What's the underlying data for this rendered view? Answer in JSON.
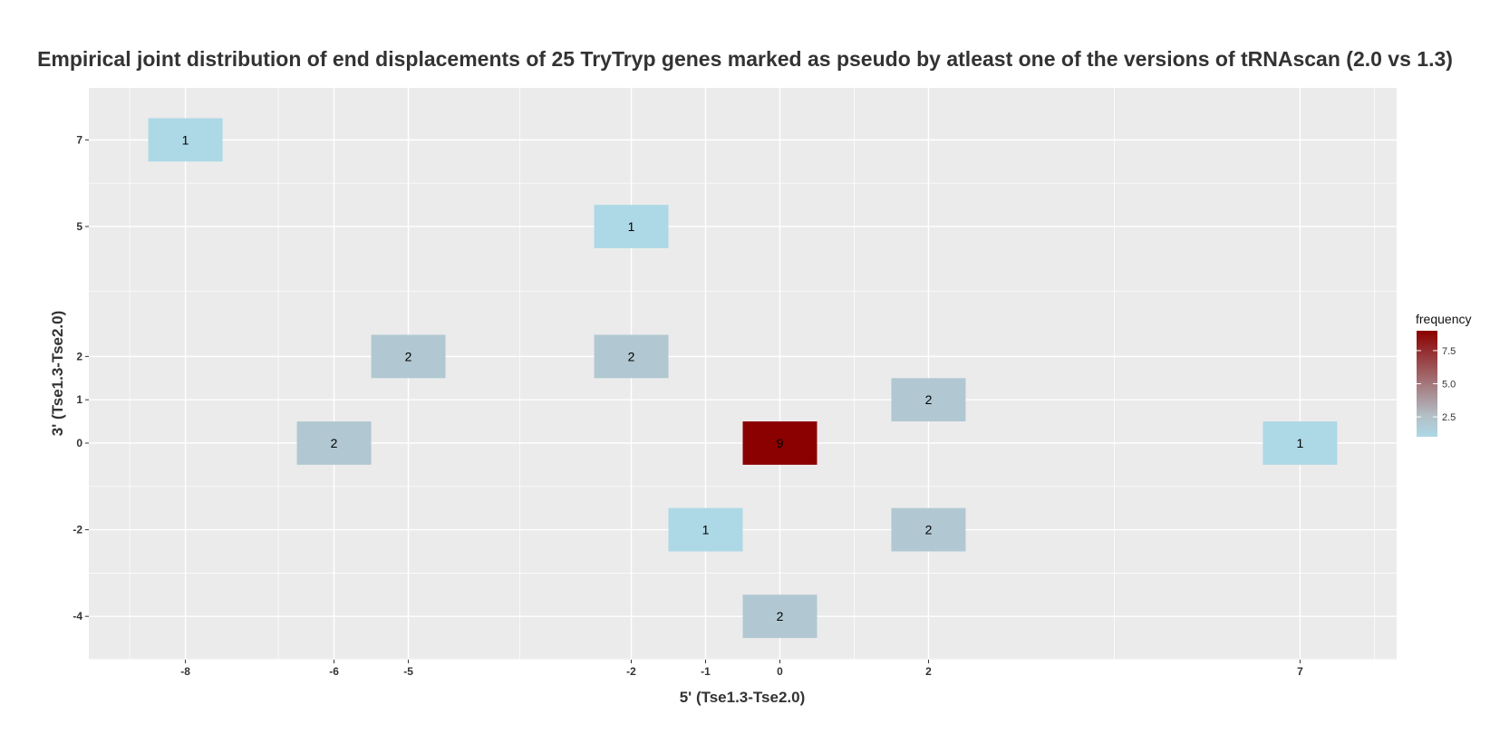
{
  "chart_data": {
    "type": "heatmap",
    "title": "Empirical joint distribution of end displacements of 25 TryTryp genes marked as pseudo by atleast one of the versions of tRNAscan (2.0 vs 1.3)",
    "xlabel": "5' (Tse1.3-Tse2.0)",
    "ylabel": "3' (Tse1.3-Tse2.0)",
    "xlim": [
      -9.3,
      8.3
    ],
    "ylim": [
      -5.0,
      8.2
    ],
    "x_ticks": [
      -8,
      -6,
      -5,
      -2,
      -1,
      0,
      2,
      7
    ],
    "y_ticks": [
      -4,
      -2,
      0,
      1,
      2,
      5,
      7
    ],
    "x_minor_grid": [
      -8.75,
      -6.75,
      -3.5,
      1,
      4.5,
      8
    ],
    "y_minor_grid": [
      -4.98,
      -3,
      -1,
      3.5,
      6
    ],
    "cells": [
      {
        "x": -8,
        "y": 7,
        "frequency": 1
      },
      {
        "x": -2,
        "y": 5,
        "frequency": 1
      },
      {
        "x": -5,
        "y": 2,
        "frequency": 2
      },
      {
        "x": -2,
        "y": 2,
        "frequency": 2
      },
      {
        "x": 2,
        "y": 1,
        "frequency": 2
      },
      {
        "x": -6,
        "y": 0,
        "frequency": 2
      },
      {
        "x": 0,
        "y": 0,
        "frequency": 9
      },
      {
        "x": 7,
        "y": 0,
        "frequency": 1
      },
      {
        "x": -1,
        "y": -2,
        "frequency": 1
      },
      {
        "x": 2,
        "y": -2,
        "frequency": 2
      },
      {
        "x": 0,
        "y": -4,
        "frequency": 2
      }
    ],
    "tile_width": 1,
    "tile_height": 1,
    "grid": true,
    "legend": {
      "title": "frequency",
      "position": "right",
      "range": [
        1,
        9
      ],
      "ticks": [
        2.5,
        5.0,
        7.5
      ],
      "tick_labels": [
        "2.5",
        "5.0",
        "7.5"
      ],
      "color_low": "#add8e6",
      "color_mid": "#b3bfc6",
      "color_high": "#8b0000"
    },
    "colors": {
      "panel_background": "#ebebeb",
      "grid_line": "#ffffff"
    }
  }
}
